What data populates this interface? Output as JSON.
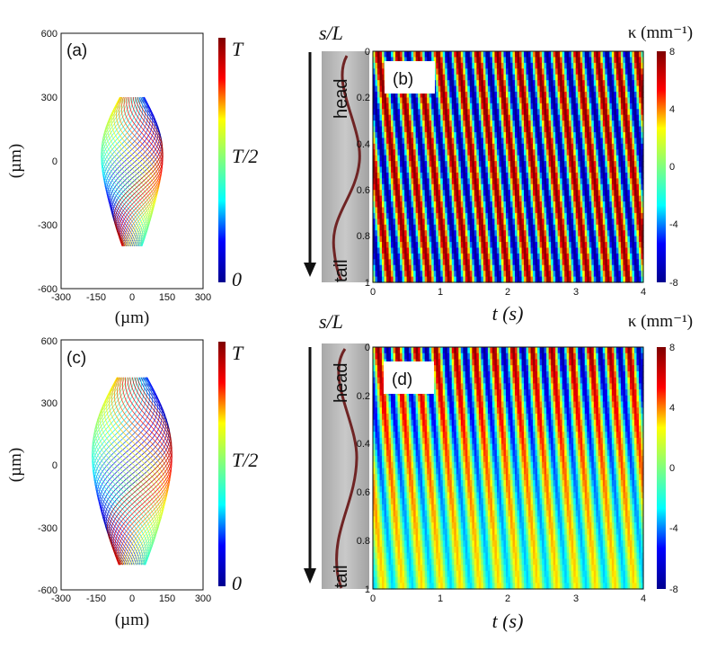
{
  "chart_data": [
    {
      "id": "a",
      "type": "scatter",
      "panel_label": "(a)",
      "description_text": "",
      "xlabel": "(µm)",
      "ylabel": "(µm)",
      "xlim": [
        -300,
        300
      ],
      "ylim": [
        -600,
        600
      ],
      "xticks": [
        "-300",
        "-150",
        "0",
        "150",
        "300"
      ],
      "yticks": [
        "600",
        "300",
        "0",
        "-300",
        "-600"
      ],
      "colorbar": {
        "labels": [
          "T",
          "T/2",
          "0"
        ],
        "min_label": "0",
        "mid_label": "T/2",
        "max_label": "T"
      },
      "trajectory": {
        "head_y": 300,
        "tail_y": -400,
        "amplitude_x": 120,
        "n_curves": 36
      }
    },
    {
      "id": "b",
      "type": "heatmap",
      "panel_label": "(b)",
      "xlabel": "t (s)",
      "ylabel": "s/L",
      "xlim": [
        0,
        4
      ],
      "ylim": [
        0,
        1
      ],
      "xticks": [
        "0",
        "1",
        "2",
        "3",
        "4"
      ],
      "yticks": [
        "0",
        "0.2",
        "0.4",
        "0.6",
        "0.8",
        "1"
      ],
      "colorbar": {
        "title": "κ (mm⁻¹)",
        "ticks": [
          "8",
          "4",
          "0",
          "-4",
          "-8"
        ],
        "min": -8,
        "max": 8
      },
      "field": {
        "amplitude_mm_inv": 8,
        "frequency_hz": 3.4,
        "wave_phase_per_L": 1.6,
        "decay": 0.05
      },
      "inset_labels": {
        "head": "head",
        "tail": "tail"
      }
    },
    {
      "id": "c",
      "type": "scatter",
      "panel_label": "(c)",
      "xlabel": "(µm)",
      "ylabel": "(µm)",
      "xlim": [
        -300,
        300
      ],
      "ylim": [
        -600,
        600
      ],
      "xticks": [
        "-300",
        "-150",
        "0",
        "150",
        "300"
      ],
      "yticks": [
        "600",
        "300",
        "0",
        "-300",
        "-600"
      ],
      "colorbar": {
        "labels": [
          "T",
          "T/2",
          "0"
        ],
        "min_label": "0",
        "mid_label": "T/2",
        "max_label": "T"
      },
      "trajectory": {
        "head_y": 420,
        "tail_y": -480,
        "amplitude_x": 160,
        "n_curves": 40
      }
    },
    {
      "id": "d",
      "type": "heatmap",
      "panel_label": "(d)",
      "xlabel": "t (s)",
      "ylabel": "s/L",
      "xlim": [
        0,
        4
      ],
      "ylim": [
        0,
        1
      ],
      "xticks": [
        "0",
        "1",
        "2",
        "3",
        "4"
      ],
      "yticks": [
        "0",
        "0.2",
        "0.4",
        "0.6",
        "0.8",
        "1"
      ],
      "colorbar": {
        "title": "κ (mm⁻¹)",
        "ticks": [
          "8",
          "4",
          "0",
          "-4",
          "-8"
        ],
        "min": -8,
        "max": 8
      },
      "field": {
        "amplitude_mm_inv": 8,
        "frequency_hz": 3.5,
        "wave_phase_per_L": 1.3,
        "decay": 1.7
      },
      "inset_labels": {
        "head": "head",
        "tail": "tail"
      }
    }
  ],
  "colors": {
    "jet": [
      "#00008f",
      "#0000ff",
      "#00ffff",
      "#7fff7f",
      "#ffff00",
      "#ff0000",
      "#7f0000"
    ],
    "axis": "#111111",
    "worm_bg": "#b9b9b9",
    "worm_body": "#7a2a2a"
  }
}
